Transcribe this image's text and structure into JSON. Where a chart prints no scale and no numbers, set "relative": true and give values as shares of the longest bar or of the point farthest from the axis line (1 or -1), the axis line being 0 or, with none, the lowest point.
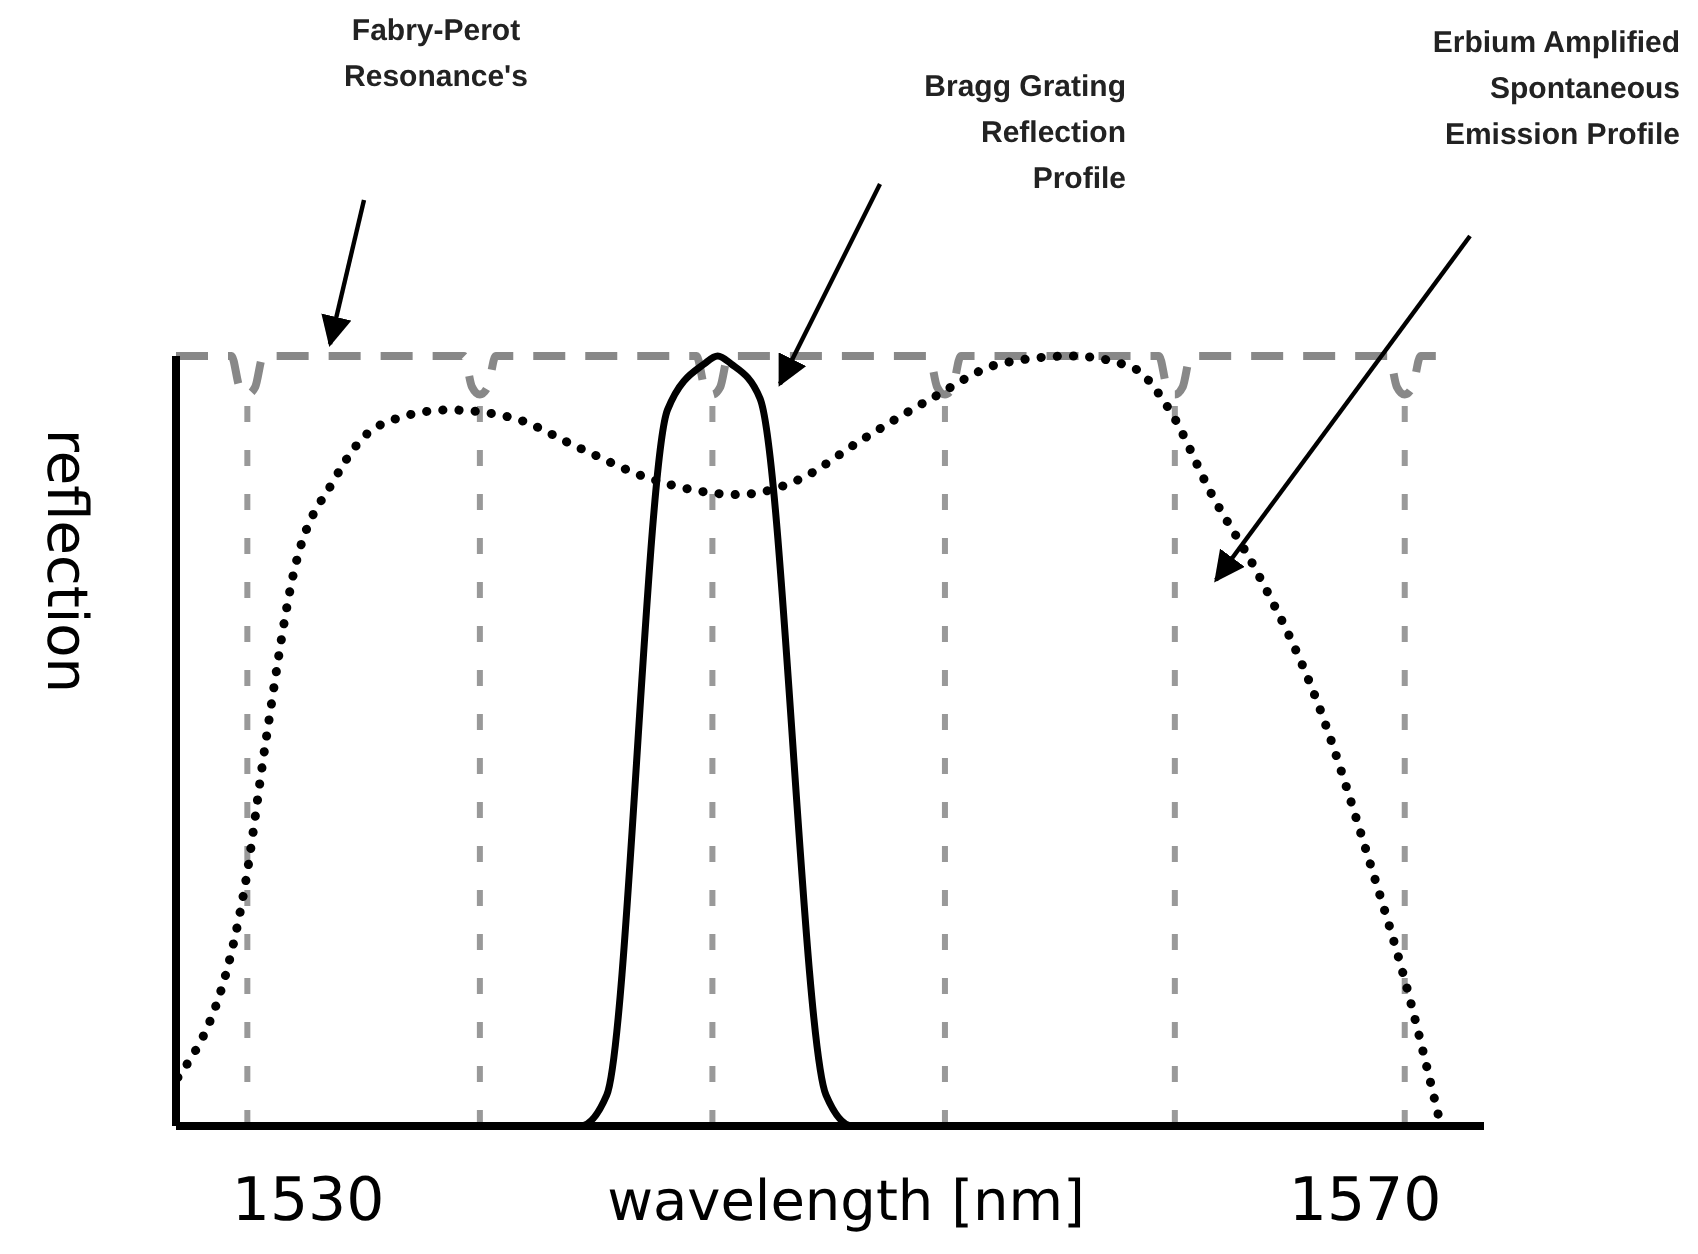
{
  "chart_data": {
    "type": "line",
    "relative": true,
    "xlabel": "wavelength [nm]",
    "ylabel": "reflection",
    "xlim": [
      1525,
      1574.5
    ],
    "xticks": [
      1530,
      1570
    ],
    "series": [
      {
        "color": "#888888",
        "line_style": "dashed",
        "x": [
          1525,
          1527.1,
          1527.4,
          1527.7,
          1528,
          1528.3,
          1535.9,
          1536.2,
          1536.5,
          1536.8,
          1537.1,
          1544.7,
          1545,
          1545.3,
          1545.6,
          1545.9,
          1553.5,
          1553.8,
          1554.1,
          1554.4,
          1554.7,
          1562.2,
          1562.5,
          1562.8,
          1563.1,
          1563.4,
          1570.9,
          1571.2,
          1571.5,
          1571.8,
          1572.1,
          1573
        ],
        "values": [
          1,
          1,
          0.96,
          0.95,
          0.96,
          1,
          1,
          0.96,
          0.95,
          0.96,
          1,
          1,
          0.96,
          0.95,
          0.96,
          1,
          1,
          0.96,
          0.95,
          0.96,
          1,
          1,
          0.96,
          0.95,
          0.96,
          1,
          1,
          0.96,
          0.95,
          0.96,
          1,
          1
        ]
      },
      {
        "color": "#000000",
        "line_style": "solid",
        "x": [
          1525,
          1540.3,
          1541.3,
          1543.6,
          1545,
          1545.5,
          1546,
          1547.1,
          1549.6,
          1550.6,
          1574.5
        ],
        "values": [
          0,
          0,
          0.04,
          0.93,
          0.99,
          1,
          0.99,
          0.945,
          0.04,
          0,
          0
        ]
      },
      {
        "color": "#000000",
        "line_style": "dotted",
        "x": [
          1525.07,
          1527.6,
          1528.4,
          1529.4,
          1531,
          1532.7,
          1535.3,
          1537.7,
          1540.3,
          1543,
          1546.3,
          1548.6,
          1550.9,
          1553.6,
          1556.2,
          1558.9,
          1561.2,
          1562.6,
          1564.2,
          1565.9,
          1568.2,
          1570.2,
          1571.5,
          1572.8
        ],
        "values": [
          0.063,
          0.31,
          0.5,
          0.71,
          0.84,
          0.91,
          0.93,
          0.92,
          0.88,
          0.84,
          0.82,
          0.84,
          0.89,
          0.945,
          0.99,
          1,
          0.985,
          0.93,
          0.82,
          0.72,
          0.55,
          0.34,
          0.19,
          0.01
        ]
      }
    ],
    "ref_lines": [
      {
        "axis": "x",
        "value": 1527.7,
        "color": "#999999",
        "line_style": "dashed"
      },
      {
        "axis": "x",
        "value": 1536.5,
        "color": "#999999",
        "line_style": "dashed"
      },
      {
        "axis": "x",
        "value": 1545.3,
        "color": "#999999",
        "line_style": "dashed"
      },
      {
        "axis": "x",
        "value": 1554.1,
        "color": "#999999",
        "line_style": "dashed"
      },
      {
        "axis": "x",
        "value": 1562.8,
        "color": "#999999",
        "line_style": "dashed"
      },
      {
        "axis": "x",
        "value": 1571.5,
        "color": "#999999",
        "line_style": "dashed"
      }
    ],
    "annotations": [
      "Fabry-Perot\nResonance's",
      "Bragg  Grating\nReflection\nProfile",
      "Erbium Amplified\nSpontaneous\nEmission Profile"
    ]
  }
}
